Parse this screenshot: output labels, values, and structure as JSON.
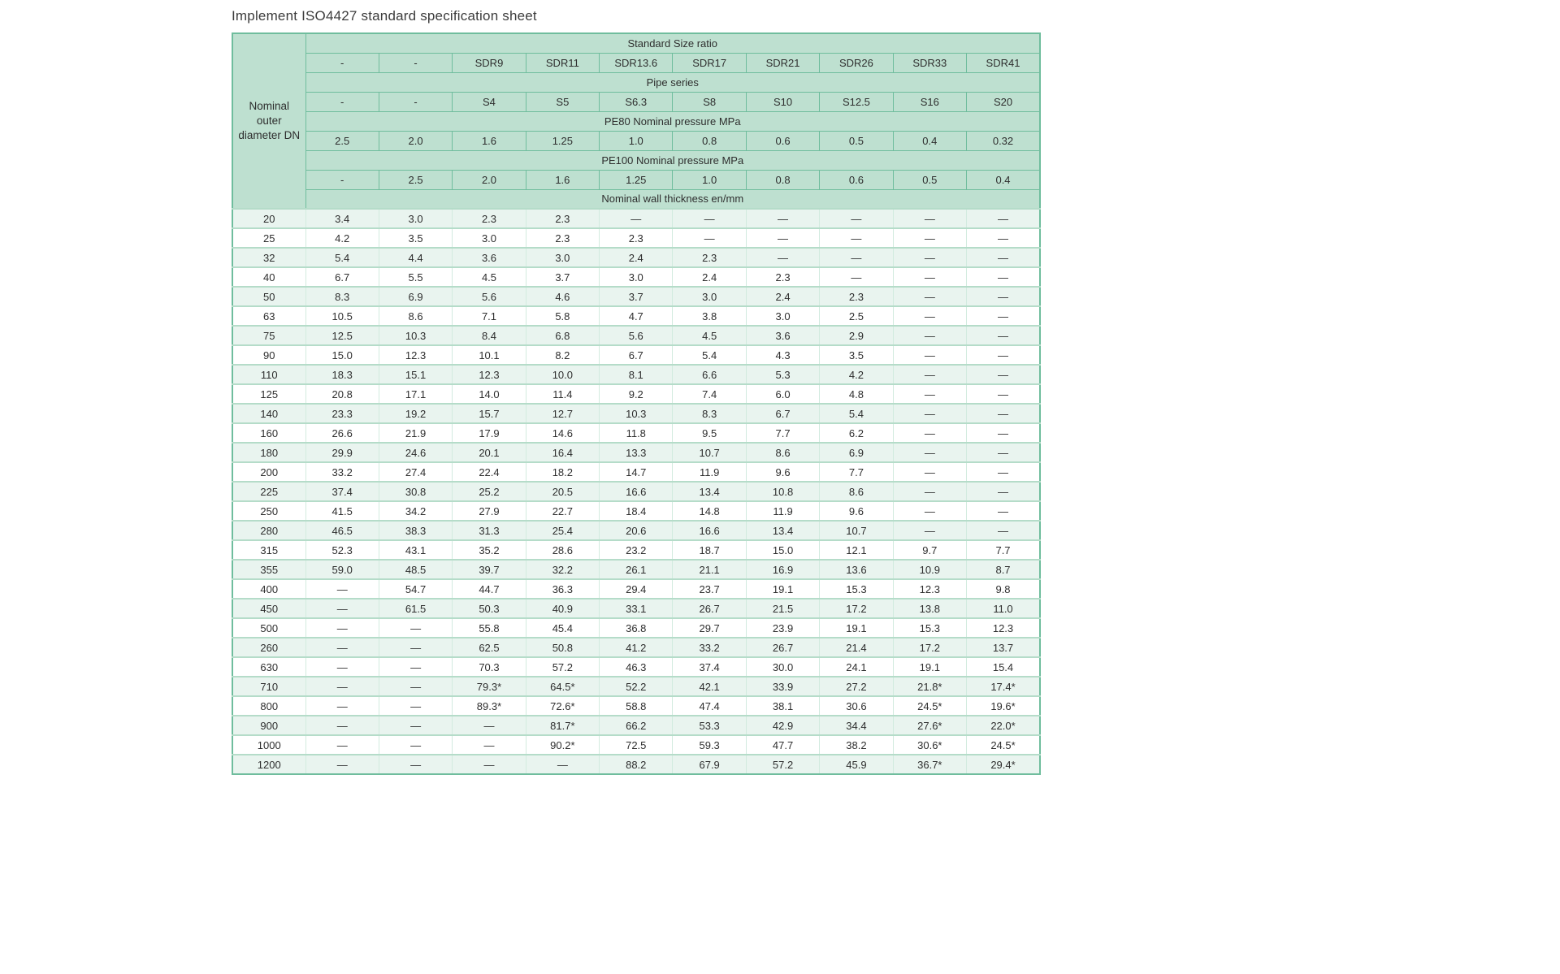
{
  "page": {
    "title": "Implement ISO4427 standard specification sheet"
  },
  "table": {
    "corner_label": "Nominal outer diameter DN",
    "corner_lines": [
      "Nominal",
      "outer",
      "diameter DN"
    ],
    "header_bands": [
      {
        "label": "Standard Size ratio",
        "cells": [
          "-",
          "-",
          "SDR9",
          "SDR11",
          "SDR13.6",
          "SDR17",
          "SDR21",
          "SDR26",
          "SDR33",
          "SDR41"
        ]
      },
      {
        "label": "Pipe series",
        "cells": [
          "-",
          "-",
          "S4",
          "S5",
          "S6.3",
          "S8",
          "S10",
          "S12.5",
          "S16",
          "S20"
        ]
      },
      {
        "label": "PE80 Nominal pressure MPa",
        "cells": [
          "2.5",
          "2.0",
          "1.6",
          "1.25",
          "1.0",
          "0.8",
          "0.6",
          "0.5",
          "0.4",
          "0.32"
        ]
      },
      {
        "label": "PE100 Nominal pressure MPa",
        "cells": [
          "-",
          "2.5",
          "2.0",
          "1.6",
          "1.25",
          "1.0",
          "0.8",
          "0.6",
          "0.5",
          "0.4"
        ]
      },
      {
        "label": "Nominal wall thickness en/mm",
        "cells": null
      }
    ],
    "rows": [
      {
        "dn": "20",
        "values": [
          "3.4",
          "3.0",
          "2.3",
          "2.3",
          "—",
          "—",
          "—",
          "—",
          "—",
          "—"
        ]
      },
      {
        "dn": "25",
        "values": [
          "4.2",
          "3.5",
          "3.0",
          "2.3",
          "2.3",
          "—",
          "—",
          "—",
          "—",
          "—"
        ]
      },
      {
        "dn": "32",
        "values": [
          "5.4",
          "4.4",
          "3.6",
          "3.0",
          "2.4",
          "2.3",
          "—",
          "—",
          "—",
          "—"
        ]
      },
      {
        "dn": "40",
        "values": [
          "6.7",
          "5.5",
          "4.5",
          "3.7",
          "3.0",
          "2.4",
          "2.3",
          "—",
          "—",
          "—"
        ]
      },
      {
        "dn": "50",
        "values": [
          "8.3",
          "6.9",
          "5.6",
          "4.6",
          "3.7",
          "3.0",
          "2.4",
          "2.3",
          "—",
          "—"
        ]
      },
      {
        "dn": "63",
        "values": [
          "10.5",
          "8.6",
          "7.1",
          "5.8",
          "4.7",
          "3.8",
          "3.0",
          "2.5",
          "—",
          "—"
        ]
      },
      {
        "dn": "75",
        "values": [
          "12.5",
          "10.3",
          "8.4",
          "6.8",
          "5.6",
          "4.5",
          "3.6",
          "2.9",
          "—",
          "—"
        ]
      },
      {
        "dn": "90",
        "values": [
          "15.0",
          "12.3",
          "10.1",
          "8.2",
          "6.7",
          "5.4",
          "4.3",
          "3.5",
          "—",
          "—"
        ]
      },
      {
        "dn": "110",
        "values": [
          "18.3",
          "15.1",
          "12.3",
          "10.0",
          "8.1",
          "6.6",
          "5.3",
          "4.2",
          "—",
          "—"
        ]
      },
      {
        "dn": "125",
        "values": [
          "20.8",
          "17.1",
          "14.0",
          "11.4",
          "9.2",
          "7.4",
          "6.0",
          "4.8",
          "—",
          "—"
        ]
      },
      {
        "dn": "140",
        "values": [
          "23.3",
          "19.2",
          "15.7",
          "12.7",
          "10.3",
          "8.3",
          "6.7",
          "5.4",
          "—",
          "—"
        ]
      },
      {
        "dn": "160",
        "values": [
          "26.6",
          "21.9",
          "17.9",
          "14.6",
          "11.8",
          "9.5",
          "7.7",
          "6.2",
          "—",
          "—"
        ]
      },
      {
        "dn": "180",
        "values": [
          "29.9",
          "24.6",
          "20.1",
          "16.4",
          "13.3",
          "10.7",
          "8.6",
          "6.9",
          "—",
          "—"
        ]
      },
      {
        "dn": "200",
        "values": [
          "33.2",
          "27.4",
          "22.4",
          "18.2",
          "14.7",
          "11.9",
          "9.6",
          "7.7",
          "—",
          "—"
        ]
      },
      {
        "dn": "225",
        "values": [
          "37.4",
          "30.8",
          "25.2",
          "20.5",
          "16.6",
          "13.4",
          "10.8",
          "8.6",
          "—",
          "—"
        ]
      },
      {
        "dn": "250",
        "values": [
          "41.5",
          "34.2",
          "27.9",
          "22.7",
          "18.4",
          "14.8",
          "11.9",
          "9.6",
          "—",
          "—"
        ]
      },
      {
        "dn": "280",
        "values": [
          "46.5",
          "38.3",
          "31.3",
          "25.4",
          "20.6",
          "16.6",
          "13.4",
          "10.7",
          "—",
          "—"
        ]
      },
      {
        "dn": "315",
        "values": [
          "52.3",
          "43.1",
          "35.2",
          "28.6",
          "23.2",
          "18.7",
          "15.0",
          "12.1",
          "9.7",
          "7.7"
        ]
      },
      {
        "dn": "355",
        "values": [
          "59.0",
          "48.5",
          "39.7",
          "32.2",
          "26.1",
          "21.1",
          "16.9",
          "13.6",
          "10.9",
          "8.7"
        ]
      },
      {
        "dn": "400",
        "values": [
          "—",
          "54.7",
          "44.7",
          "36.3",
          "29.4",
          "23.7",
          "19.1",
          "15.3",
          "12.3",
          "9.8"
        ]
      },
      {
        "dn": "450",
        "values": [
          "—",
          "61.5",
          "50.3",
          "40.9",
          "33.1",
          "26.7",
          "21.5",
          "17.2",
          "13.8",
          "11.0"
        ]
      },
      {
        "dn": "500",
        "values": [
          "—",
          "—",
          "55.8",
          "45.4",
          "36.8",
          "29.7",
          "23.9",
          "19.1",
          "15.3",
          "12.3"
        ]
      },
      {
        "dn": "260",
        "values": [
          "—",
          "—",
          "62.5",
          "50.8",
          "41.2",
          "33.2",
          "26.7",
          "21.4",
          "17.2",
          "13.7"
        ]
      },
      {
        "dn": "630",
        "values": [
          "—",
          "—",
          "70.3",
          "57.2",
          "46.3",
          "37.4",
          "30.0",
          "24.1",
          "19.1",
          "15.4"
        ]
      },
      {
        "dn": "710",
        "values": [
          "—",
          "—",
          "79.3*",
          "64.5*",
          "52.2",
          "42.1",
          "33.9",
          "27.2",
          "21.8*",
          "17.4*"
        ]
      },
      {
        "dn": "800",
        "values": [
          "—",
          "—",
          "89.3*",
          "72.6*",
          "58.8",
          "47.4",
          "38.1",
          "30.6",
          "24.5*",
          "19.6*"
        ]
      },
      {
        "dn": "900",
        "values": [
          "—",
          "—",
          "—",
          "81.7*",
          "66.2",
          "53.3",
          "42.9",
          "34.4",
          "27.6*",
          "22.0*"
        ]
      },
      {
        "dn": "1000",
        "values": [
          "—",
          "—",
          "—",
          "90.2*",
          "72.5",
          "59.3",
          "47.7",
          "38.2",
          "30.6*",
          "24.5*"
        ]
      },
      {
        "dn": "1200",
        "values": [
          "—",
          "—",
          "—",
          "—",
          "88.2",
          "67.9",
          "57.2",
          "45.9",
          "36.7*",
          "29.4*"
        ]
      }
    ]
  },
  "colors": {
    "header_fill": "#bee0d0",
    "header_border": "#6fbd9d",
    "stripe_fill": "#e9f4ef",
    "row_line": "#b5dcc9",
    "column_line": "#d2ebdf",
    "text": "#2e2e2e"
  }
}
